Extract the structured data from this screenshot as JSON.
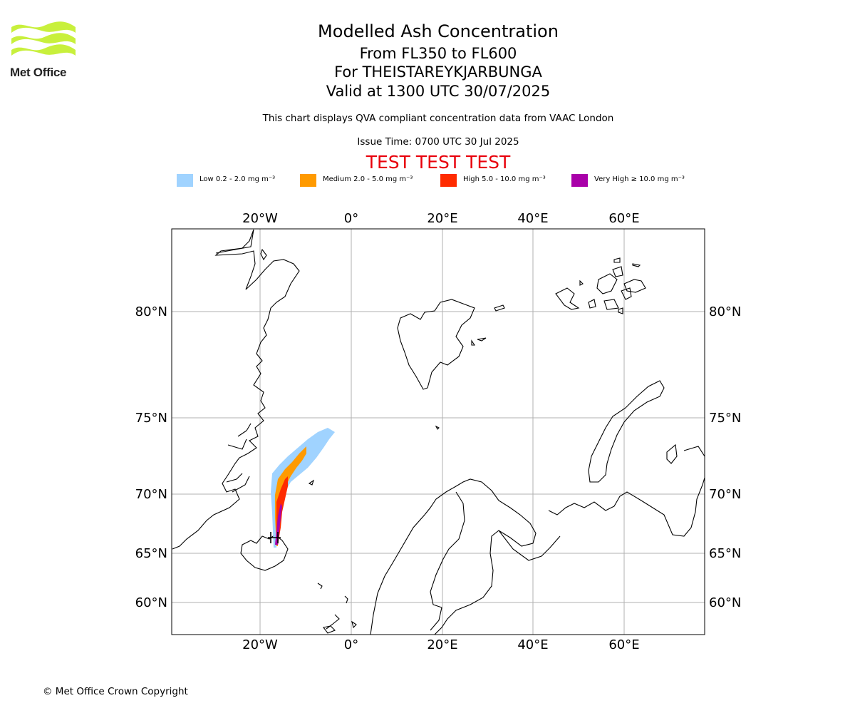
{
  "logo": {
    "text": "Met Office"
  },
  "titles": {
    "main": "Modelled Ash Concentration",
    "levels": "From FL350 to FL600",
    "volcano": "For THEISTAREYKJARBUNGA",
    "valid": "Valid at 1300 UTC 30/07/2025",
    "subtitle": "This chart displays QVA compliant concentration data from VAAC London",
    "issue": "Issue Time: 0700 UTC 30 Jul 2025",
    "test_banner": "TEST TEST TEST"
  },
  "legend": [
    {
      "label": "Low 0.2 - 2.0 mg m⁻³",
      "color": "#a0d3ff"
    },
    {
      "label": "Medium 2.0 - 5.0 mg m⁻³",
      "color": "#ff9a00"
    },
    {
      "label": "High 5.0 - 10.0 mg m⁻³",
      "color": "#ff2b00"
    },
    {
      "label": "Very High ≥ 10.0 mg m⁻³",
      "color": "#a900a9"
    }
  ],
  "map": {
    "longitude_ticks": [
      "20°W",
      "0°",
      "20°E",
      "40°E",
      "60°E"
    ],
    "latitude_ticks": [
      "80°N",
      "75°N",
      "70°N",
      "65°N",
      "60°N"
    ],
    "gridline_color": "#b0b0b0",
    "volcano_marker": "volcano-icon"
  },
  "footer": {
    "copyright": "© Met Office Crown Copyright"
  }
}
